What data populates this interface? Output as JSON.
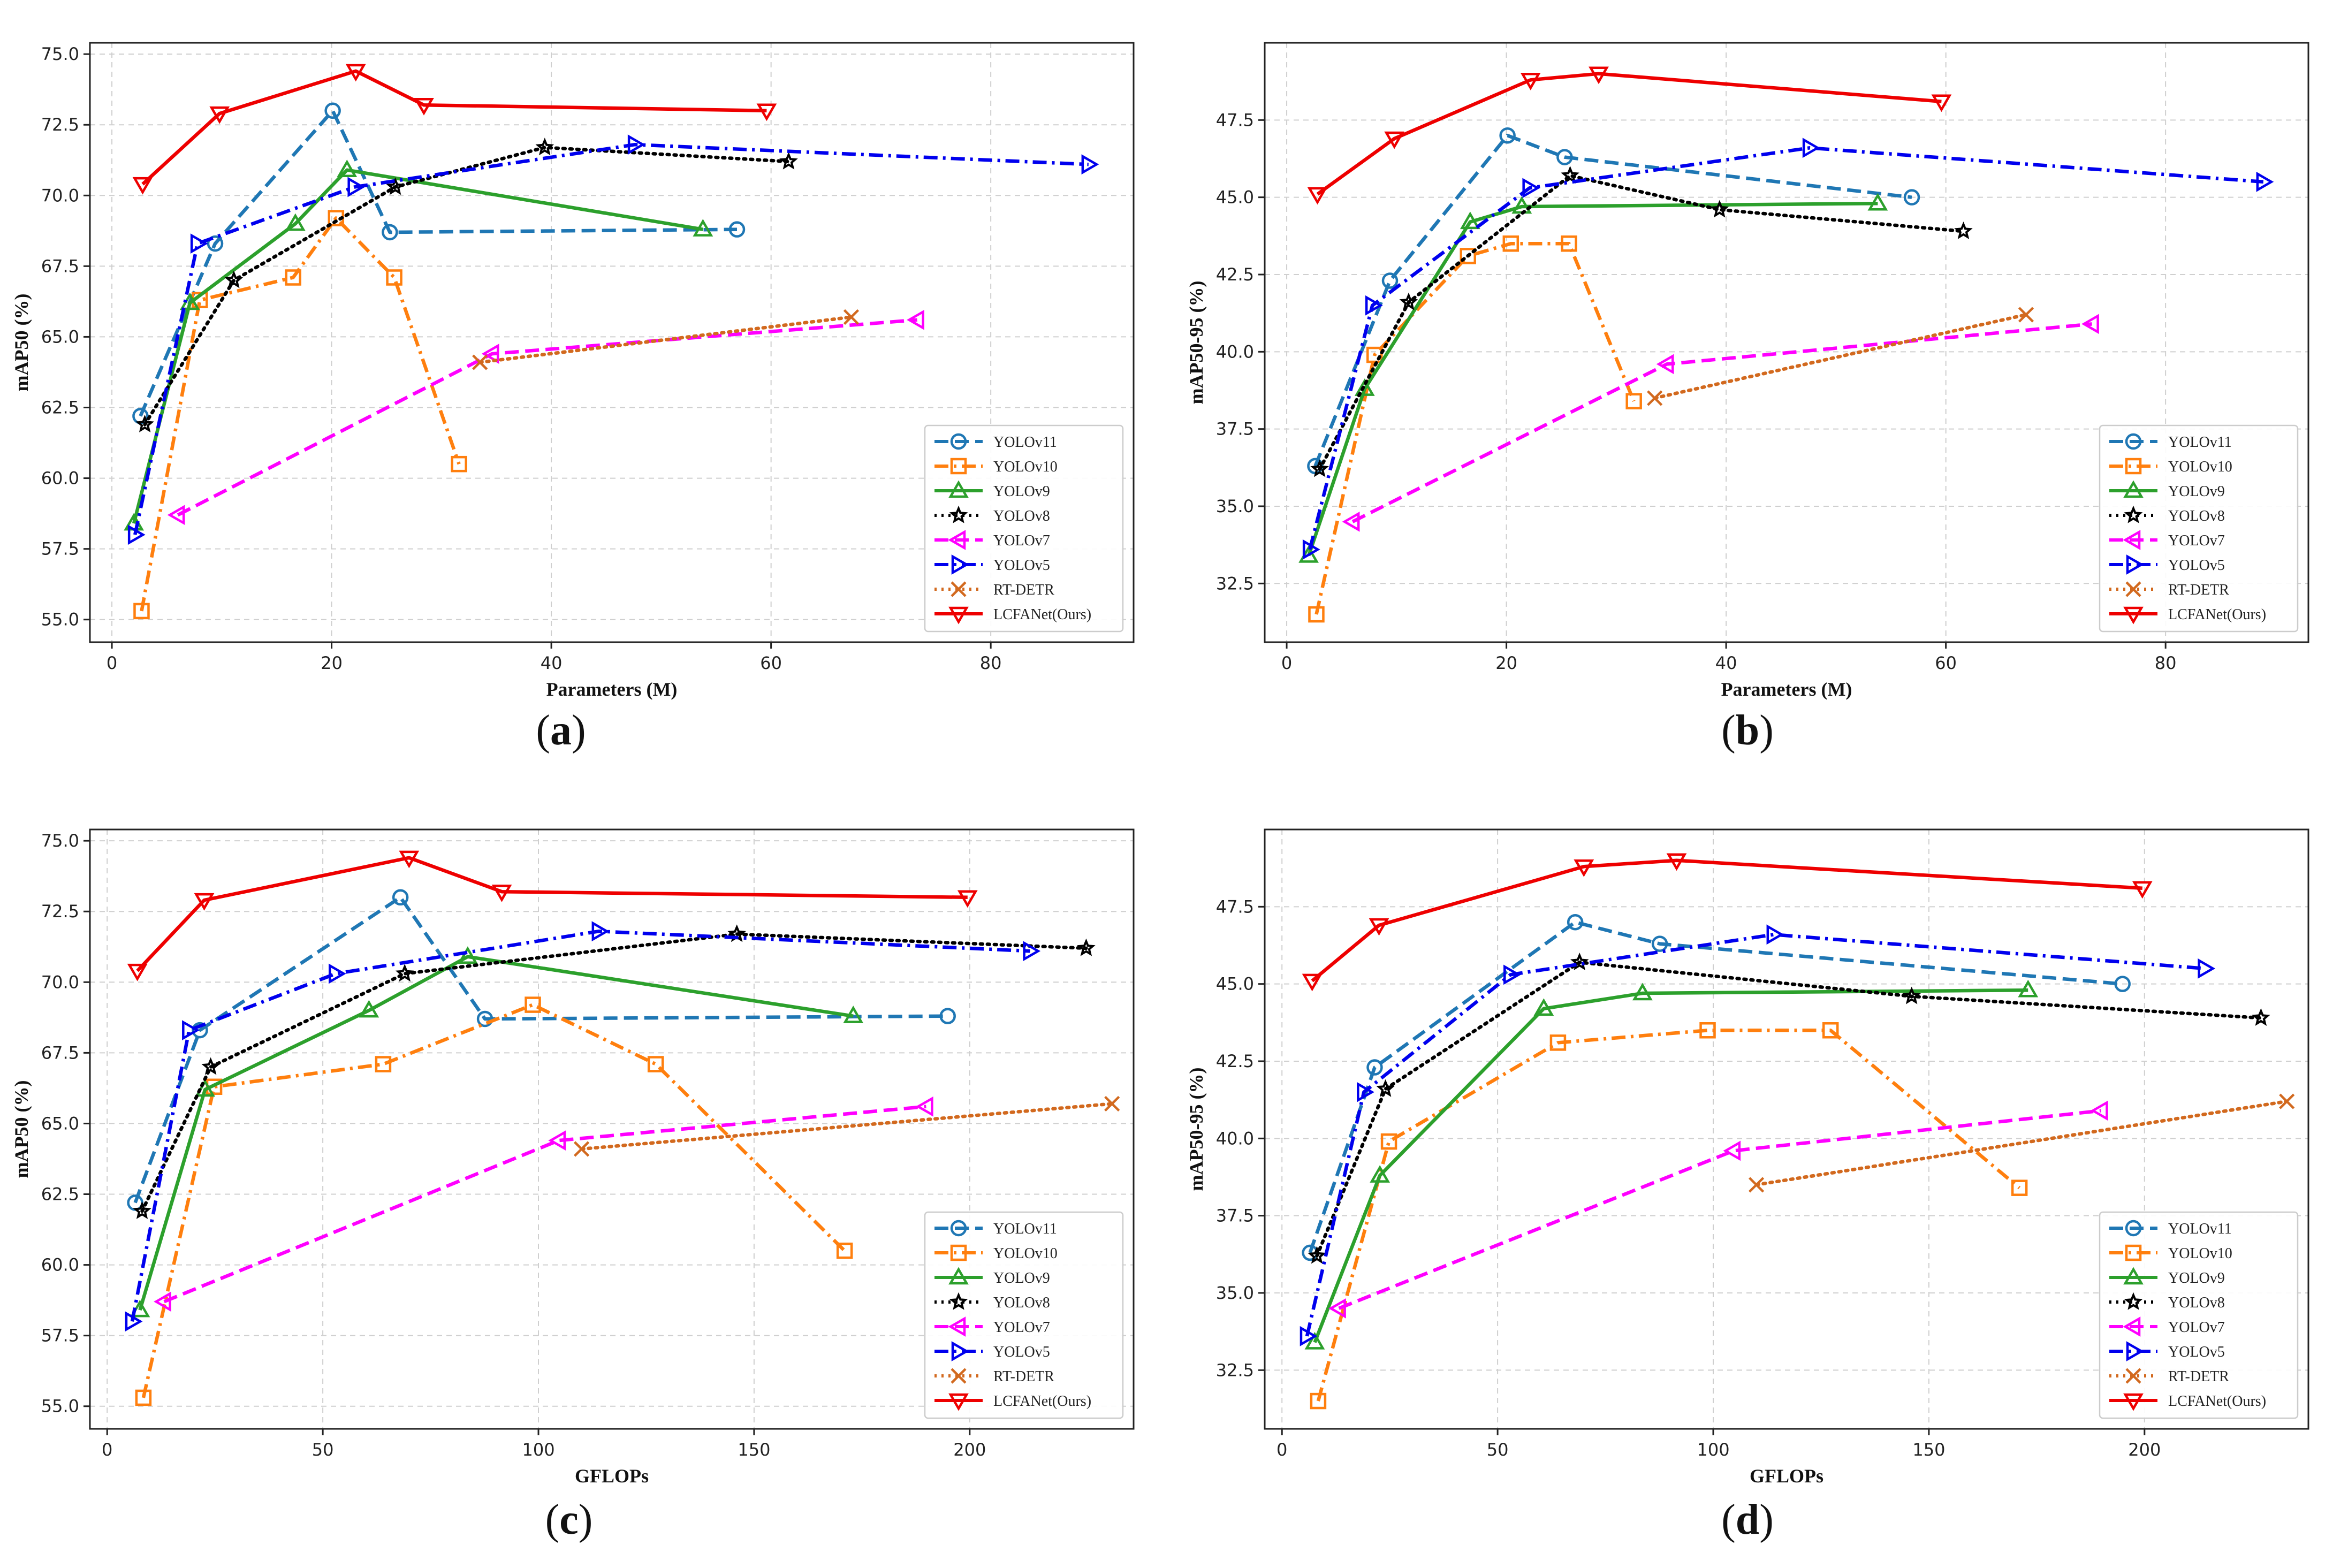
{
  "figure": {
    "panels": [
      {
        "id": "a",
        "label": "(a)",
        "label_letter": "a"
      },
      {
        "id": "b",
        "label": "(b)",
        "label_letter": "b"
      },
      {
        "id": "c",
        "label": "(c)",
        "label_letter": "c"
      },
      {
        "id": "d",
        "label": "(d)",
        "label_letter": "d"
      }
    ]
  },
  "chart_data": [
    {
      "id": "a",
      "type": "line",
      "title": "",
      "xlabel": "Parameters (M)",
      "ylabel": "mAP50 (%)",
      "xlim": [
        -2,
        93
      ],
      "ylim": [
        54.2,
        75.4
      ],
      "xticks": [
        0,
        20,
        40,
        60,
        80
      ],
      "yticks": [
        55.0,
        57.5,
        60.0,
        62.5,
        65.0,
        67.5,
        70.0,
        72.5,
        75.0
      ],
      "grid": true,
      "legend_position": "lower-right",
      "series": [
        {
          "name": "YOLOv11",
          "color": "#1f77b4",
          "marker": "circle",
          "linestyle": "dashed",
          "x": [
            2.6,
            9.4,
            20.1,
            25.3,
            56.9
          ],
          "y": [
            62.2,
            68.3,
            73.0,
            68.7,
            68.8
          ]
        },
        {
          "name": "YOLOv10",
          "color": "#ff7f0e",
          "marker": "square",
          "linestyle": "dashdot",
          "x": [
            2.7,
            8.0,
            16.5,
            20.4,
            25.7,
            31.6
          ],
          "y": [
            55.3,
            66.3,
            67.1,
            69.2,
            67.1,
            60.5
          ]
        },
        {
          "name": "YOLOv9",
          "color": "#2ca02c",
          "marker": "triangle-up",
          "linestyle": "solid",
          "x": [
            2.0,
            7.1,
            16.7,
            21.4,
            53.8
          ],
          "y": [
            58.4,
            66.2,
            69.0,
            70.9,
            68.8
          ]
        },
        {
          "name": "YOLOv8",
          "color": "#000000",
          "marker": "star",
          "linestyle": "dotted",
          "x": [
            3.0,
            11.1,
            25.8,
            39.4,
            61.6
          ],
          "y": [
            61.9,
            67.0,
            70.3,
            71.7,
            71.2
          ]
        },
        {
          "name": "YOLOv7",
          "color": "#ff00ff",
          "marker": "triangle-left",
          "linestyle": "dashed",
          "x": [
            6.0,
            34.6,
            73.3
          ],
          "y": [
            58.7,
            64.4,
            65.6
          ]
        },
        {
          "name": "YOLOv5",
          "color": "#0000ee",
          "marker": "triangle-right",
          "linestyle": "dashdot",
          "x": [
            2.1,
            7.8,
            22.1,
            47.6,
            88.9
          ],
          "y": [
            58.0,
            68.3,
            70.3,
            71.8,
            71.1
          ]
        },
        {
          "name": "RT-DETR",
          "color": "#d2691e",
          "marker": "x",
          "linestyle": "dotted",
          "x": [
            33.5,
            67.3
          ],
          "y": [
            64.1,
            65.7
          ]
        },
        {
          "name": "LCFANet(Ours)",
          "color": "#ee0000",
          "marker": "triangle-down",
          "linestyle": "solid",
          "x": [
            2.8,
            9.8,
            22.2,
            28.4,
            59.6
          ],
          "y": [
            70.4,
            72.9,
            74.4,
            73.2,
            73.0
          ]
        }
      ]
    },
    {
      "id": "b",
      "type": "line",
      "title": "",
      "xlabel": "Parameters (M)",
      "ylabel": "mAP50-95 (%)",
      "xlim": [
        -2,
        93
      ],
      "ylim": [
        30.6,
        50.0
      ],
      "xticks": [
        0,
        20,
        40,
        60,
        80
      ],
      "yticks": [
        32.5,
        35.0,
        37.5,
        40.0,
        42.5,
        45.0,
        47.5
      ],
      "grid": true,
      "legend_position": "lower-right",
      "series": [
        {
          "name": "YOLOv11",
          "color": "#1f77b4",
          "marker": "circle",
          "linestyle": "dashed",
          "x": [
            2.6,
            9.4,
            20.1,
            25.3,
            56.9
          ],
          "y": [
            36.3,
            42.3,
            47.0,
            46.3,
            45.0
          ]
        },
        {
          "name": "YOLOv10",
          "color": "#ff7f0e",
          "marker": "square",
          "linestyle": "dashdot",
          "x": [
            2.7,
            8.0,
            16.5,
            20.4,
            25.7,
            31.6
          ],
          "y": [
            31.5,
            39.9,
            43.1,
            43.5,
            43.5,
            38.4
          ]
        },
        {
          "name": "YOLOv9",
          "color": "#2ca02c",
          "marker": "triangle-up",
          "linestyle": "solid",
          "x": [
            2.0,
            7.1,
            16.7,
            21.4,
            53.8
          ],
          "y": [
            33.4,
            38.8,
            44.2,
            44.7,
            44.8
          ]
        },
        {
          "name": "YOLOv8",
          "color": "#000000",
          "marker": "star",
          "linestyle": "dotted",
          "x": [
            3.0,
            11.1,
            25.8,
            39.4,
            61.6
          ],
          "y": [
            36.2,
            41.6,
            45.7,
            44.6,
            43.9
          ]
        },
        {
          "name": "YOLOv7",
          "color": "#ff00ff",
          "marker": "triangle-left",
          "linestyle": "dashed",
          "x": [
            6.0,
            34.6,
            73.3
          ],
          "y": [
            34.5,
            39.6,
            40.9
          ]
        },
        {
          "name": "YOLOv5",
          "color": "#0000ee",
          "marker": "triangle-right",
          "linestyle": "dashdot",
          "x": [
            2.1,
            7.8,
            22.1,
            47.6,
            88.9
          ],
          "y": [
            33.6,
            41.5,
            45.3,
            46.6,
            45.5
          ]
        },
        {
          "name": "RT-DETR",
          "color": "#d2691e",
          "marker": "x",
          "linestyle": "dotted",
          "x": [
            33.5,
            67.3
          ],
          "y": [
            38.5,
            41.2
          ]
        },
        {
          "name": "LCFANet(Ours)",
          "color": "#ee0000",
          "marker": "triangle-down",
          "linestyle": "solid",
          "x": [
            2.8,
            9.8,
            22.2,
            28.4,
            59.6
          ],
          "y": [
            45.1,
            46.9,
            48.8,
            49.0,
            48.1
          ]
        }
      ]
    },
    {
      "id": "c",
      "type": "line",
      "title": "",
      "xlabel": "GFLOPs",
      "ylabel": "mAP50 (%)",
      "xlim": [
        -4,
        238
      ],
      "ylim": [
        54.2,
        75.4
      ],
      "xticks": [
        0,
        50,
        100,
        150,
        200
      ],
      "yticks": [
        55.0,
        57.5,
        60.0,
        62.5,
        65.0,
        67.5,
        70.0,
        72.5,
        75.0
      ],
      "grid": true,
      "legend_position": "lower-right",
      "series": [
        {
          "name": "YOLOv11",
          "color": "#1f77b4",
          "marker": "circle",
          "linestyle": "dashed",
          "x": [
            6.5,
            21.5,
            68.0,
            87.6,
            194.9
          ],
          "y": [
            62.2,
            68.3,
            73.0,
            68.7,
            68.8
          ]
        },
        {
          "name": "YOLOv10",
          "color": "#ff7f0e",
          "marker": "square",
          "linestyle": "dashdot",
          "x": [
            8.4,
            24.8,
            64.0,
            98.7,
            127.2,
            171.0
          ],
          "y": [
            55.3,
            66.3,
            67.1,
            69.2,
            67.1,
            60.5
          ]
        },
        {
          "name": "YOLOv9",
          "color": "#2ca02c",
          "marker": "triangle-up",
          "linestyle": "solid",
          "x": [
            7.6,
            22.7,
            60.7,
            83.6,
            173.0
          ],
          "y": [
            58.4,
            66.2,
            69.0,
            70.9,
            68.8
          ]
        },
        {
          "name": "YOLOv8",
          "color": "#000000",
          "marker": "star",
          "linestyle": "dotted",
          "x": [
            8.1,
            24.0,
            69.0,
            146.0,
            227.0
          ],
          "y": [
            61.9,
            67.0,
            70.3,
            71.7,
            71.2
          ]
        },
        {
          "name": "YOLOv7",
          "color": "#ff00ff",
          "marker": "triangle-left",
          "linestyle": "dashed",
          "x": [
            13.2,
            104.7,
            189.9
          ],
          "y": [
            58.7,
            64.4,
            65.6
          ]
        },
        {
          "name": "YOLOv5",
          "color": "#0000ee",
          "marker": "triangle-right",
          "linestyle": "dashdot",
          "x": [
            5.8,
            19.0,
            53.0,
            114.0,
            214.0
          ],
          "y": [
            58.0,
            68.3,
            70.3,
            71.8,
            71.1
          ]
        },
        {
          "name": "RT-DETR",
          "color": "#d2691e",
          "marker": "x",
          "linestyle": "dotted",
          "x": [
            110.0,
            233.0
          ],
          "y": [
            64.1,
            65.7
          ]
        },
        {
          "name": "LCFANet(Ours)",
          "color": "#ee0000",
          "marker": "triangle-down",
          "linestyle": "solid",
          "x": [
            7.0,
            22.5,
            70.0,
            91.5,
            199.5
          ],
          "y": [
            70.4,
            72.9,
            74.4,
            73.2,
            73.0
          ]
        }
      ]
    },
    {
      "id": "d",
      "type": "line",
      "title": "",
      "xlabel": "GFLOPs",
      "ylabel": "mAP50-95 (%)",
      "xlim": [
        -4,
        238
      ],
      "ylim": [
        30.6,
        50.0
      ],
      "xticks": [
        0,
        50,
        100,
        150,
        200
      ],
      "yticks": [
        32.5,
        35.0,
        37.5,
        40.0,
        42.5,
        45.0,
        47.5
      ],
      "grid": true,
      "legend_position": "lower-right",
      "series": [
        {
          "name": "YOLOv11",
          "color": "#1f77b4",
          "marker": "circle",
          "linestyle": "dashed",
          "x": [
            6.5,
            21.5,
            68.0,
            87.6,
            194.9
          ],
          "y": [
            36.3,
            42.3,
            47.0,
            46.3,
            45.0
          ]
        },
        {
          "name": "YOLOv10",
          "color": "#ff7f0e",
          "marker": "square",
          "linestyle": "dashdot",
          "x": [
            8.4,
            24.8,
            64.0,
            98.7,
            127.2,
            171.0
          ],
          "y": [
            31.5,
            39.9,
            43.1,
            43.5,
            43.5,
            38.4
          ]
        },
        {
          "name": "YOLOv9",
          "color": "#2ca02c",
          "marker": "triangle-up",
          "linestyle": "solid",
          "x": [
            7.6,
            22.7,
            60.7,
            83.6,
            173.0
          ],
          "y": [
            33.4,
            38.8,
            44.2,
            44.7,
            44.8
          ]
        },
        {
          "name": "YOLOv8",
          "color": "#000000",
          "marker": "star",
          "linestyle": "dotted",
          "x": [
            8.1,
            24.0,
            69.0,
            146.0,
            227.0
          ],
          "y": [
            36.2,
            41.6,
            45.7,
            44.6,
            43.9
          ]
        },
        {
          "name": "YOLOv7",
          "color": "#ff00ff",
          "marker": "triangle-left",
          "linestyle": "dashed",
          "x": [
            13.2,
            104.7,
            189.9
          ],
          "y": [
            34.5,
            39.6,
            40.9
          ]
        },
        {
          "name": "YOLOv5",
          "color": "#0000ee",
          "marker": "triangle-right",
          "linestyle": "dashdot",
          "x": [
            5.8,
            19.0,
            53.0,
            114.0,
            214.0
          ],
          "y": [
            33.6,
            41.5,
            45.3,
            46.6,
            45.5
          ]
        },
        {
          "name": "RT-DETR",
          "color": "#d2691e",
          "marker": "x",
          "linestyle": "dotted",
          "x": [
            110.0,
            233.0
          ],
          "y": [
            38.5,
            41.2
          ]
        },
        {
          "name": "LCFANet(Ours)",
          "color": "#ee0000",
          "marker": "triangle-down",
          "linestyle": "solid",
          "x": [
            7.0,
            22.5,
            70.0,
            91.5,
            199.5
          ],
          "y": [
            45.1,
            46.9,
            48.8,
            49.0,
            48.1
          ]
        }
      ]
    }
  ]
}
